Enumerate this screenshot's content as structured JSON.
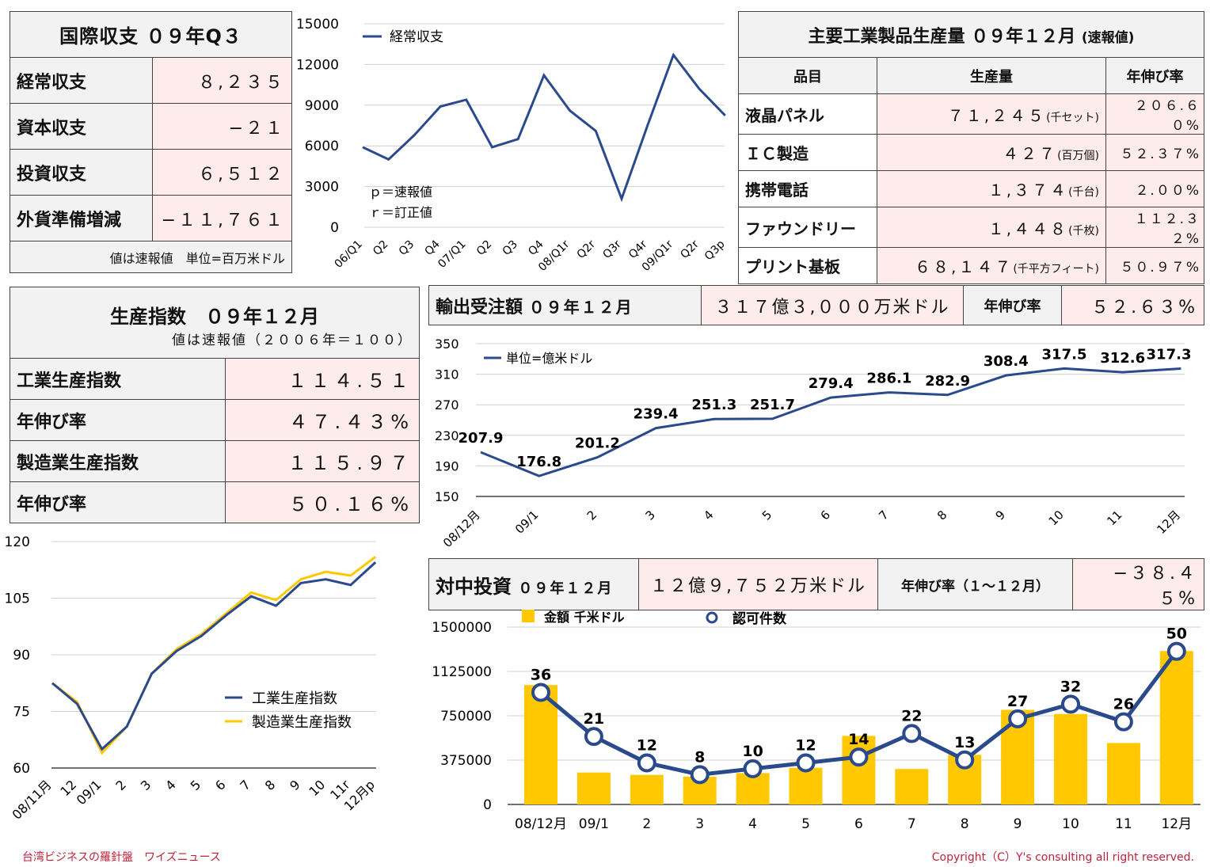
{
  "bop": {
    "title": "国際収支 ０９年Q３",
    "rows": [
      {
        "label": "経常収支",
        "value": "８,２３５"
      },
      {
        "label": "資本収支",
        "value": "−２１"
      },
      {
        "label": "投資収支",
        "value": "６,５１２"
      },
      {
        "label": "外貨準備増減",
        "value": "−１１,７６１"
      }
    ],
    "note": "値は速報値　単位=百万米ドル"
  },
  "industrial": {
    "title": "主要工業製品生産量 ０９年１２月",
    "title_sub": "(速報値)",
    "headers": [
      "品目",
      "生産量",
      "年伸び率"
    ],
    "rows": [
      {
        "item": "液晶パネル",
        "qty": "７１,２４５",
        "unit": "(千セット)",
        "growth": "２０６.６０%"
      },
      {
        "item": "ＩＣ製造",
        "qty": "４２７",
        "unit": "(百万個)",
        "growth": "５２.３７%"
      },
      {
        "item": "携帯電話",
        "qty": "１,３７４",
        "unit": "(千台)",
        "growth": "２.００%"
      },
      {
        "item": "ファウンドリー",
        "qty": "１,４４８",
        "unit": "(千枚)",
        "growth": "１１２.３２%"
      },
      {
        "item": "プリント基板",
        "qty": "６８,１４７",
        "unit": "(千平方フィート)",
        "growth": "５０.９７%"
      }
    ]
  },
  "production_index": {
    "title": "生産指数　０９年１２月",
    "subtitle": "値は速報値（２００６年＝１００）",
    "rows": [
      {
        "label": "工業生産指数",
        "value": "１１４.５１"
      },
      {
        "label": "年伸び率",
        "value": "４７.４３%"
      },
      {
        "label": "製造業生産指数",
        "value": "１１５.９７"
      },
      {
        "label": "年伸び率",
        "value": "５０.１６%"
      }
    ]
  },
  "export_orders": {
    "title": "輸出受注額",
    "period": "０９年１２月",
    "amount": "３１７億３,０００万米ドル",
    "growth_label": "年伸び率",
    "growth": "５２.６３%"
  },
  "china_investment": {
    "title": "対中投資",
    "period": "０９年１２月",
    "amount": "１２億９,７５２万米ドル",
    "growth_label": "年伸び率（１〜１２月）",
    "growth": "−３８.４５%"
  },
  "footer": {
    "left": "台湾ビジネスの羅針盤　ワイズニュース",
    "right": "Copyright（C）Y's consulting all right reserved."
  },
  "colors": {
    "navy": "#2b4a8e",
    "yellow": "#ffc800",
    "pink": "#fdeceb",
    "header_gray": "#f2f2f2",
    "footer_red": "#c0213a"
  },
  "chart_data": [
    {
      "type": "line",
      "categories": [
        "06/Q1",
        "Q2",
        "Q3",
        "Q4",
        "07/Q1",
        "Q2",
        "Q3",
        "Q4",
        "08/Q1r",
        "Q2r",
        "Q3r",
        "Q4r",
        "09/Q1r",
        "Q2r",
        "Q3p"
      ],
      "series": [
        {
          "name": "経常収支",
          "values": [
            5900,
            5000,
            6800,
            8900,
            9400,
            5900,
            6500,
            11200,
            8600,
            7100,
            2100,
            7500,
            12700,
            10200,
            8235
          ]
        }
      ],
      "ylim": [
        0,
        15000
      ],
      "yticks": [
        0,
        3000,
        6000,
        9000,
        12000,
        15000
      ],
      "annotations": [
        "ｐ＝速報値",
        "ｒ＝訂正値"
      ],
      "legend": "top-left"
    },
    {
      "type": "line",
      "categories": [
        "08/12月",
        "09/1",
        "2",
        "3",
        "4",
        "5",
        "6",
        "7",
        "8",
        "9",
        "10",
        "11",
        "12月"
      ],
      "series": [
        {
          "name": "単位=億米ドル",
          "values": [
            207.9,
            176.8,
            201.2,
            239.4,
            251.3,
            251.7,
            279.4,
            286.1,
            282.9,
            308.4,
            317.5,
            312.6,
            317.3
          ]
        }
      ],
      "ylim": [
        150,
        350
      ],
      "yticks": [
        150,
        190,
        230,
        270,
        310,
        350
      ],
      "legend": "top-left"
    },
    {
      "type": "line",
      "categories": [
        "08/11月",
        "12",
        "09/1",
        "2",
        "3",
        "4",
        "5",
        "6",
        "7",
        "8",
        "9",
        "10",
        "11r",
        "12月p"
      ],
      "series": [
        {
          "name": "工業生産指数",
          "values": [
            82.5,
            77,
            65,
            71,
            85,
            91,
            95,
            100.5,
            105.5,
            103,
            109,
            110,
            108.5,
            114.51
          ]
        },
        {
          "name": "製造業生産指数",
          "values": [
            82.5,
            77.5,
            64,
            71,
            85,
            91.5,
            95.5,
            101,
            106.5,
            104.5,
            110,
            112,
            111,
            115.97
          ]
        }
      ],
      "ylim": [
        60,
        120
      ],
      "yticks": [
        60,
        75,
        90,
        105,
        120
      ],
      "legend": "center-right"
    },
    {
      "type": "bar",
      "categories": [
        "08/12月",
        "09/1",
        "2",
        "3",
        "4",
        "5",
        "6",
        "7",
        "8",
        "9",
        "10",
        "11",
        "12月"
      ],
      "series": [
        {
          "name": "金額 千米ドル",
          "values": [
            1010000,
            270000,
            250000,
            235000,
            265000,
            310000,
            580000,
            300000,
            420000,
            800000,
            765000,
            520000,
            1297520
          ]
        },
        {
          "name": "認可件数",
          "values": [
            36,
            21,
            12,
            8,
            10,
            12,
            14,
            22,
            13,
            27,
            32,
            26,
            50
          ]
        }
      ],
      "ylim": [
        0,
        1500000
      ],
      "yticks": [
        0,
        375000,
        750000,
        1125000,
        1500000
      ],
      "legend": "top"
    }
  ]
}
